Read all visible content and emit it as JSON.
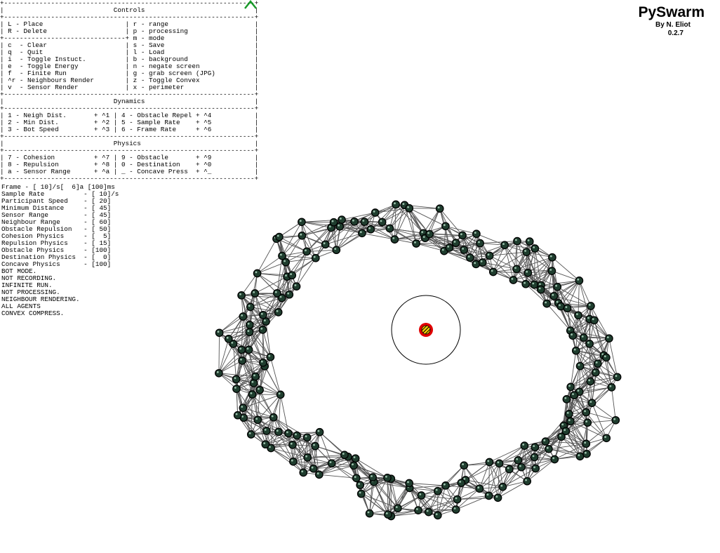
{
  "app": {
    "title": "PySwarm",
    "author": "By N. Eliot",
    "version": "0.2.7"
  },
  "help_panel": {
    "lines": [
      "+----------------------------------------------------------------+",
      "|                            Controls                            |",
      "+----------------------------------------------------------------+",
      "| L - Place                     | r - range                      |",
      "| R - Delete                    | p - processing                 |",
      "+-------------------------------+ m - mode                       |",
      "| c  - Clear                    | s - Save                       |",
      "| q  - Quit                     | l - Load                       |",
      "| i  - Toggle Instuct.          | b - background                 |",
      "| e  - Toggle Energy            | n - negate screen              |",
      "| f  - Finite Run               | g - grab screen (JPG)          |",
      "| ^r - Neighbours Render        | z - Toggle Convex              |",
      "| v  - Sensor Render            | x - perimeter                  |",
      "+----------------------------------------------------------------+",
      "|                            Dynamics                            |",
      "+----------------------------------------------------------------+",
      "| 1 - Neigh Dist.       + ^1 | 4 - Obstacle Repel + ^4           |",
      "| 2 - Min Dist.         + ^2 | 5 - Sample Rate    + ^5           |",
      "| 3 - Bot Speed         + ^3 | 6 - Frame Rate     + ^6           |",
      "+----------------------------------------------------------------+",
      "|                            Physics                             |",
      "+----------------------------------------------------------------+",
      "| 7 - Cohesion          + ^7 | 9 - Obstacle       + ^9           |",
      "| 8 - Repulsion         + ^8 | 0 - Destination    + ^0           |",
      "| a - Sensor Range      + ^a | _ - Concave Press  + ^_           |",
      "+----------------------------------------------------------------+"
    ]
  },
  "status_panel": {
    "lines": [
      "Frame - [ 10]/s[  6]a [100]ms",
      "Sample Rate          - [ 10]/s",
      "Participant Speed    - [ 20]",
      "Minimum Distance     - [ 45]",
      "Sensor Range         - [ 45]",
      "Neighbour Range      - [ 60]",
      "Obstacle Repulsion   - [ 50]",
      "Cohesion Physics     - [  5]",
      "Repulsion Physics    - [ 15]",
      "Obstacle Physics     - [100]",
      "Destination Physics  - [  0]",
      "Concave Physics      - [100]",
      "BOT MODE.",
      "NOT RECORDING.",
      "INFINITE RUN.",
      "NOT PROCESSING.",
      "NEIGHBOUR RENDERING.",
      "ALL AGENTS",
      "CONVEX COMPRESS."
    ]
  },
  "icons": {
    "cursor": "arrow-cursor-icon"
  },
  "colors": {
    "background": "#ffffff",
    "agent_fill": "#1f3d2e",
    "agent_stroke": "#000000",
    "edge": "#555555",
    "obstacle_ring": "#ff0000",
    "destination_stripe": "#ffd400",
    "sensor_circle": "#000000",
    "cursor": "#00aa00"
  }
}
